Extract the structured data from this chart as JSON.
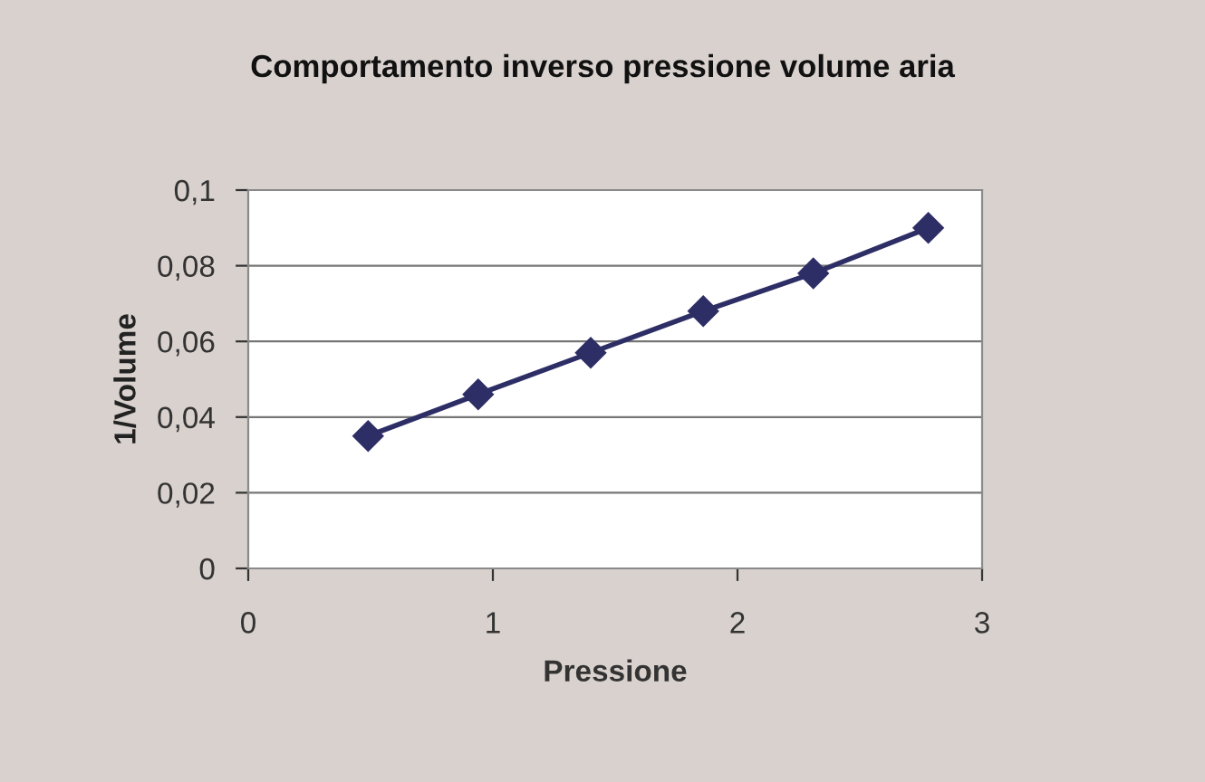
{
  "chart_data": {
    "type": "line",
    "title": "Comportamento inverso pressione volume aria",
    "xlabel": "Pressione",
    "ylabel": "1/Volume",
    "x": [
      0.49,
      0.94,
      1.4,
      1.86,
      2.31,
      2.78
    ],
    "series": [
      {
        "color": "#2e2e66",
        "values": [
          0.035,
          0.046,
          0.057,
          0.068,
          0.078,
          0.09
        ]
      }
    ],
    "xlim": [
      0,
      3
    ],
    "xticks": [
      0,
      1,
      2,
      3
    ],
    "ylim": [
      0,
      0.1
    ],
    "yticks": [
      0,
      {
        "value": 0.02,
        "label": "0,02"
      },
      {
        "value": 0.04,
        "label": "0,04"
      },
      {
        "value": 0.06,
        "label": "0,06"
      },
      {
        "value": 0.08,
        "label": "0,08"
      },
      {
        "value": 0.1,
        "label": "0,1"
      }
    ],
    "grid": "y",
    "marker": "diamond",
    "line_style": "solid",
    "legend": false
  }
}
